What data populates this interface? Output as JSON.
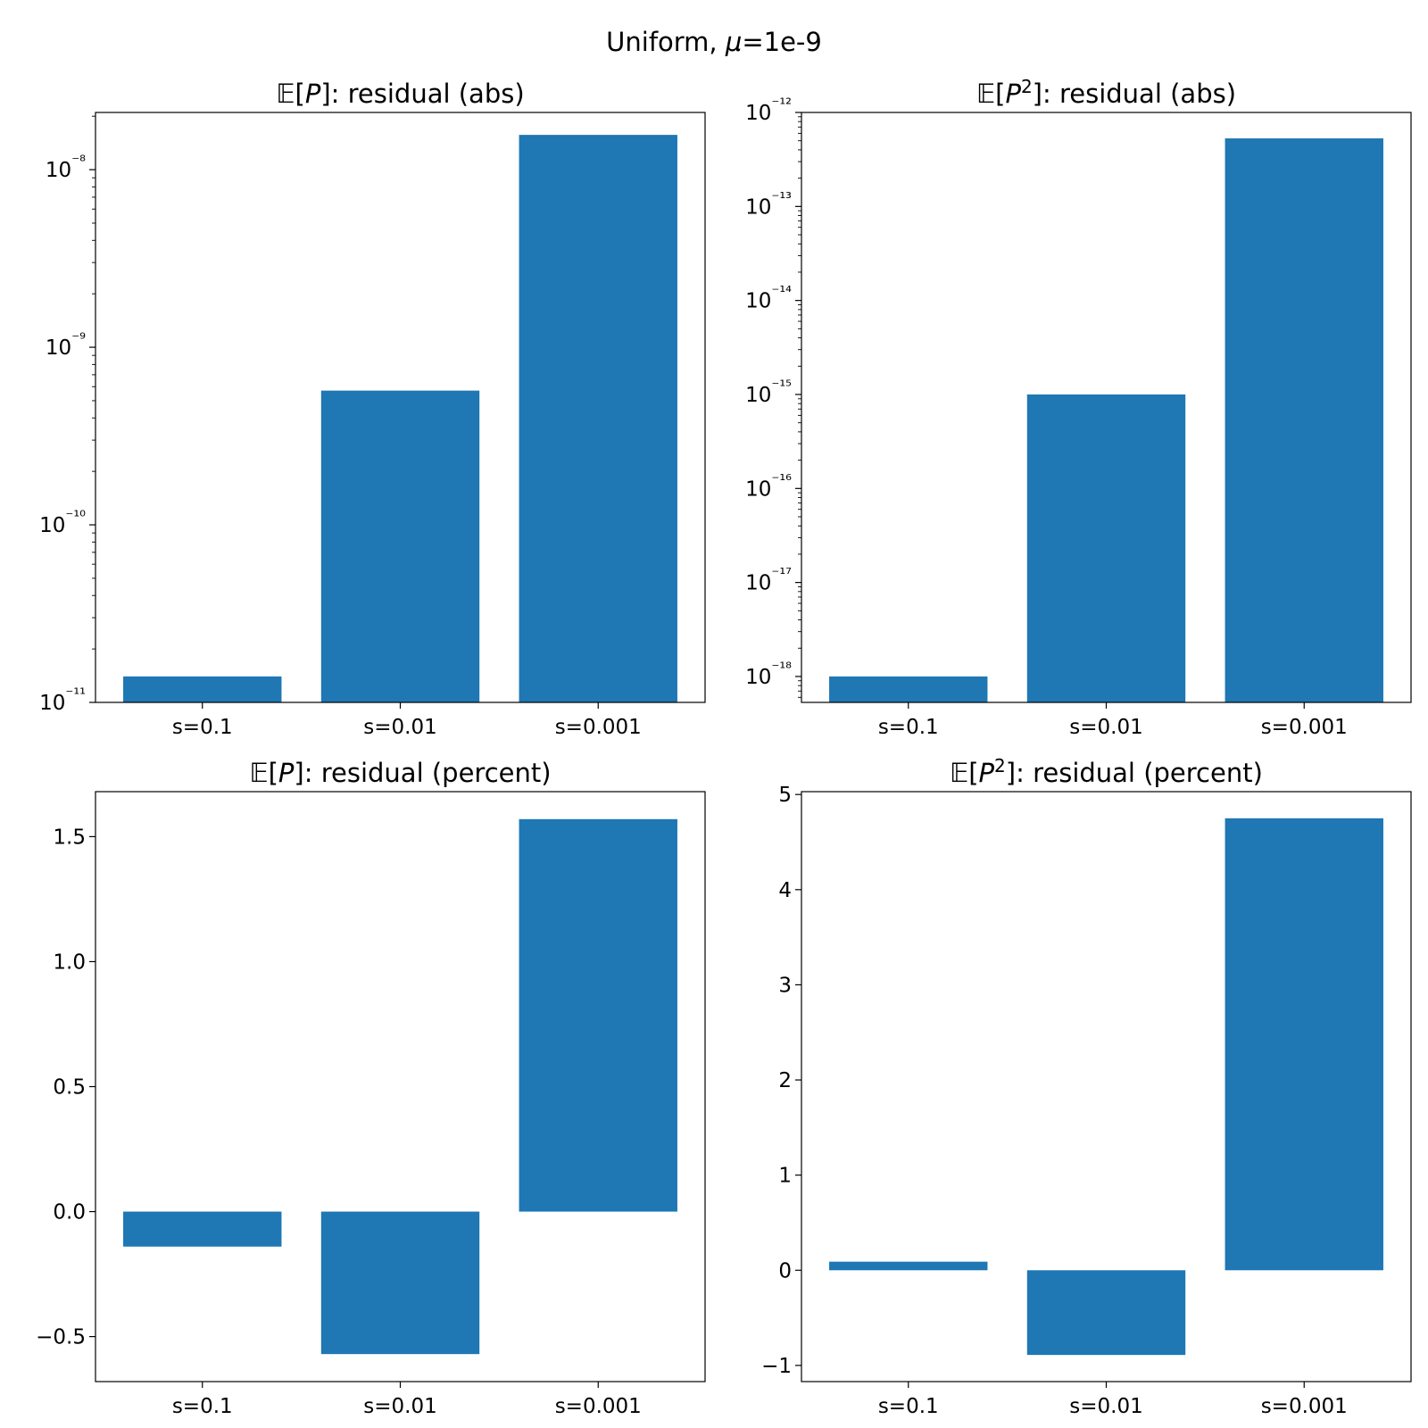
{
  "figure": {
    "title": "Uniform, μ=1e-9",
    "title_parts": [
      "Uniform, ",
      "μ",
      "=1e-9"
    ]
  },
  "chart_data": [
    {
      "type": "bar",
      "title": "𝔼[P]: residual (abs)",
      "title_math": {
        "bb": "𝔼",
        "open": "[",
        "sym": "P",
        "sup": "",
        "rest": "]: residual (abs)"
      },
      "categories": [
        "s=0.1",
        "s=0.01",
        "s=0.001"
      ],
      "values": [
        1.4e-11,
        5.7e-10,
        1.57e-08
      ],
      "ylim": [
        1e-11,
        2.1e-08
      ],
      "yscale": "log",
      "yticks": [
        -11,
        -10,
        -9,
        -8
      ],
      "ytick_labels": [
        "10⁻¹¹",
        "10⁻¹⁰",
        "10⁻⁹",
        "10⁻⁸"
      ],
      "grid": false,
      "color": "#1f77b4"
    },
    {
      "type": "bar",
      "title": "𝔼[P²]: residual (abs)",
      "title_math": {
        "bb": "𝔼",
        "open": "[",
        "sym": "P",
        "sup": "2",
        "rest": "]: residual (abs)"
      },
      "categories": [
        "s=0.1",
        "s=0.01",
        "s=0.001"
      ],
      "values": [
        1e-18,
        1e-15,
        5.3e-13
      ],
      "ylim": [
        5.3e-19,
        1e-12
      ],
      "yscale": "log",
      "yticks": [
        -18,
        -17,
        -16,
        -15,
        -14,
        -13,
        -12
      ],
      "ytick_labels": [
        "10⁻¹⁸",
        "10⁻¹⁷",
        "10⁻¹⁶",
        "10⁻¹⁵",
        "10⁻¹⁴",
        "10⁻¹³",
        "10⁻¹²"
      ],
      "grid": false,
      "color": "#1f77b4"
    },
    {
      "type": "bar",
      "title": "𝔼[P]: residual (percent)",
      "title_math": {
        "bb": "𝔼",
        "open": "[",
        "sym": "P",
        "sup": "",
        "rest": "]: residual (percent)"
      },
      "categories": [
        "s=0.1",
        "s=0.01",
        "s=0.001"
      ],
      "values": [
        -0.14,
        -0.57,
        1.57
      ],
      "ylim": [
        -0.68,
        1.68
      ],
      "yscale": "linear",
      "yticks": [
        -0.5,
        0.0,
        0.5,
        1.0,
        1.5
      ],
      "ytick_labels": [
        "−0.5",
        "0.0",
        "0.5",
        "1.0",
        "1.5"
      ],
      "grid": false,
      "color": "#1f77b4"
    },
    {
      "type": "bar",
      "title": "𝔼[P²]: residual (percent)",
      "title_math": {
        "bb": "𝔼",
        "open": "[",
        "sym": "P",
        "sup": "2",
        "rest": "]: residual (percent)"
      },
      "categories": [
        "s=0.1",
        "s=0.01",
        "s=0.001"
      ],
      "values": [
        0.09,
        -0.89,
        4.75
      ],
      "ylim": [
        -1.17,
        5.03
      ],
      "yscale": "linear",
      "yticks": [
        -1,
        0,
        1,
        2,
        3,
        4,
        5
      ],
      "ytick_labels": [
        "−1",
        "0",
        "1",
        "2",
        "3",
        "4",
        "5"
      ],
      "grid": false,
      "color": "#1f77b4"
    }
  ]
}
